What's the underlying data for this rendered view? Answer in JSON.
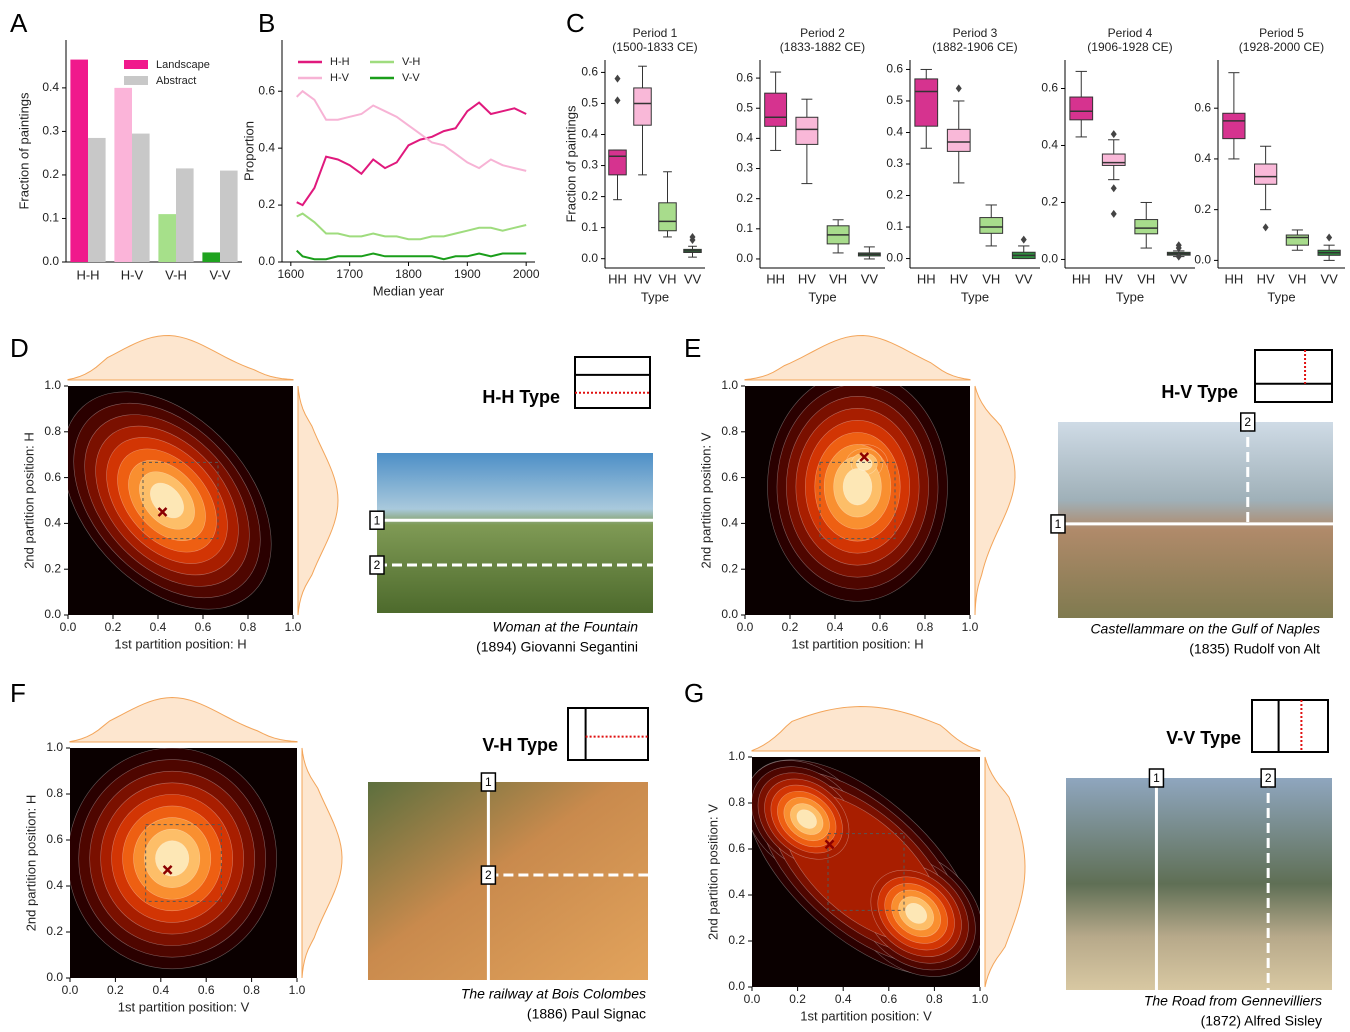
{
  "chart_data": [
    {
      "type": "bar",
      "panel": "A",
      "ylabel": "Fraction of paintings",
      "categories": [
        "H-H",
        "H-V",
        "V-H",
        "V-V"
      ],
      "series": [
        {
          "name": "Landscape",
          "color": "#f0198c",
          "colors": [
            "#f0198c",
            "#fbb4d9",
            "#a6e08a",
            "#1fa31f"
          ],
          "values": [
            0.465,
            0.4,
            0.11,
            0.022
          ]
        },
        {
          "name": "Abstract",
          "color": "#c8c8c8",
          "values": [
            0.285,
            0.295,
            0.215,
            0.21
          ]
        }
      ],
      "ylim": [
        0,
        0.51
      ],
      "yticks": [
        {
          "value": 0,
          "label": "0.0"
        },
        {
          "value": 0.1,
          "label": "0.1"
        },
        {
          "value": 0.2,
          "label": "0.2"
        },
        {
          "value": 0.3,
          "label": "0.3"
        },
        {
          "value": 0.4,
          "label": "0.4"
        }
      ],
      "legend": "upper right"
    },
    {
      "type": "line",
      "panel": "B",
      "xlabel": "Median year",
      "ylabel": "Proportion",
      "x": [
        1610,
        1620,
        1640,
        1660,
        1680,
        1700,
        1720,
        1740,
        1760,
        1780,
        1800,
        1820,
        1840,
        1860,
        1880,
        1900,
        1920,
        1940,
        1960,
        1980,
        2000
      ],
      "series": [
        {
          "name": "H-H",
          "color": "#e0197d",
          "values": [
            0.21,
            0.2,
            0.26,
            0.37,
            0.36,
            0.34,
            0.31,
            0.36,
            0.33,
            0.35,
            0.41,
            0.43,
            0.44,
            0.46,
            0.47,
            0.53,
            0.56,
            0.52,
            0.53,
            0.54,
            0.52
          ]
        },
        {
          "name": "H-V",
          "color": "#f7b3d5",
          "values": [
            0.58,
            0.6,
            0.57,
            0.5,
            0.5,
            0.51,
            0.52,
            0.55,
            0.53,
            0.51,
            0.48,
            0.45,
            0.42,
            0.41,
            0.38,
            0.35,
            0.33,
            0.36,
            0.34,
            0.33,
            0.32
          ]
        },
        {
          "name": "V-H",
          "color": "#9fdc7e",
          "values": [
            0.16,
            0.17,
            0.14,
            0.1,
            0.1,
            0.09,
            0.09,
            0.1,
            0.09,
            0.09,
            0.08,
            0.08,
            0.09,
            0.09,
            0.1,
            0.11,
            0.12,
            0.12,
            0.11,
            0.12,
            0.13
          ]
        },
        {
          "name": "V-V",
          "color": "#1a9e1a",
          "values": [
            0.04,
            0.02,
            0.01,
            0.01,
            0.02,
            0.02,
            0.02,
            0.03,
            0.02,
            0.02,
            0.02,
            0.02,
            0.02,
            0.01,
            0.02,
            0.02,
            0.03,
            0.02,
            0.03,
            0.03,
            0.03
          ]
        }
      ],
      "xlim": [
        1585,
        2015
      ],
      "xticks": [
        1600,
        1700,
        1800,
        1900,
        2000
      ],
      "ylim": [
        0,
        0.78
      ],
      "yticks": [
        {
          "value": 0,
          "label": "0.0"
        },
        {
          "value": 0.2,
          "label": "0.2"
        },
        {
          "value": 0.4,
          "label": "0.4"
        },
        {
          "value": 0.6,
          "label": "0.6"
        }
      ],
      "legend": "upper left"
    },
    {
      "type": "box",
      "panel": "C",
      "title": "Period 1",
      "subtitle": "(1500-1833 CE)",
      "xlabel": "Type",
      "ylabel": "Fraction of paintings",
      "categories": [
        "HH",
        "HV",
        "VH",
        "VV"
      ],
      "colors": [
        "#d6338f",
        "#f9b8d8",
        "#a8dc8c",
        "#2e8b3e"
      ],
      "boxes": [
        {
          "whislo": 0.19,
          "q1": 0.27,
          "med": 0.33,
          "q3": 0.35,
          "whishi": 0.35,
          "fliers": [
            0.51,
            0.58
          ]
        },
        {
          "whislo": 0.27,
          "q1": 0.43,
          "med": 0.5,
          "q3": 0.55,
          "whishi": 0.62,
          "fliers": []
        },
        {
          "whislo": 0.07,
          "q1": 0.09,
          "med": 0.12,
          "q3": 0.18,
          "whishi": 0.28,
          "fliers": []
        },
        {
          "whislo": 0.005,
          "q1": 0.02,
          "med": 0.025,
          "q3": 0.03,
          "whishi": 0.04,
          "fliers": [
            0.06,
            0.07
          ]
        }
      ],
      "ylim": [
        -0.03,
        0.64
      ],
      "yticks": [
        {
          "value": 0,
          "label": "0.0"
        },
        {
          "value": 0.1,
          "label": "0.1"
        },
        {
          "value": 0.2,
          "label": "0.2"
        },
        {
          "value": 0.3,
          "label": "0.3"
        },
        {
          "value": 0.4,
          "label": "0.4"
        },
        {
          "value": 0.5,
          "label": "0.5"
        },
        {
          "value": 0.6,
          "label": "0.6"
        }
      ]
    },
    {
      "type": "box",
      "title": "Period 2",
      "subtitle": "(1833-1882 CE)",
      "xlabel": "Type",
      "categories": [
        "HH",
        "HV",
        "VH",
        "VV"
      ],
      "colors": [
        "#d6338f",
        "#f9b8d8",
        "#a8dc8c",
        "#2e8b3e"
      ],
      "boxes": [
        {
          "whislo": 0.36,
          "q1": 0.44,
          "med": 0.47,
          "q3": 0.55,
          "whishi": 0.62,
          "fliers": []
        },
        {
          "whislo": 0.25,
          "q1": 0.38,
          "med": 0.43,
          "q3": 0.47,
          "whishi": 0.53,
          "fliers": []
        },
        {
          "whislo": 0.02,
          "q1": 0.05,
          "med": 0.08,
          "q3": 0.11,
          "whishi": 0.13,
          "fliers": []
        },
        {
          "whislo": 0,
          "q1": 0.01,
          "med": 0.015,
          "q3": 0.02,
          "whishi": 0.04,
          "fliers": []
        }
      ],
      "ylim": [
        -0.03,
        0.66
      ],
      "yticks": [
        {
          "value": 0,
          "label": "0.0"
        },
        {
          "value": 0.1,
          "label": "0.1"
        },
        {
          "value": 0.2,
          "label": "0.2"
        },
        {
          "value": 0.3,
          "label": "0.3"
        },
        {
          "value": 0.4,
          "label": "0.4"
        },
        {
          "value": 0.5,
          "label": "0.5"
        },
        {
          "value": 0.6,
          "label": "0.6"
        }
      ]
    },
    {
      "type": "box",
      "title": "Period 3",
      "subtitle": "(1882-1906 CE)",
      "xlabel": "Type",
      "categories": [
        "HH",
        "HV",
        "VH",
        "VV"
      ],
      "colors": [
        "#d6338f",
        "#f9b8d8",
        "#a8dc8c",
        "#2e8b3e"
      ],
      "boxes": [
        {
          "whislo": 0.35,
          "q1": 0.42,
          "med": 0.53,
          "q3": 0.57,
          "whishi": 0.6,
          "fliers": []
        },
        {
          "whislo": 0.24,
          "q1": 0.34,
          "med": 0.37,
          "q3": 0.41,
          "whishi": 0.5,
          "fliers": [
            0.54
          ]
        },
        {
          "whislo": 0.04,
          "q1": 0.08,
          "med": 0.1,
          "q3": 0.13,
          "whishi": 0.17,
          "fliers": []
        },
        {
          "whislo": 0,
          "q1": 0,
          "med": 0.01,
          "q3": 0.02,
          "whishi": 0.04,
          "fliers": [
            0.06
          ]
        }
      ],
      "ylim": [
        -0.03,
        0.63
      ],
      "yticks": [
        {
          "value": 0,
          "label": "0.0"
        },
        {
          "value": 0.1,
          "label": "0.1"
        },
        {
          "value": 0.2,
          "label": "0.2"
        },
        {
          "value": 0.3,
          "label": "0.3"
        },
        {
          "value": 0.4,
          "label": "0.4"
        },
        {
          "value": 0.5,
          "label": "0.5"
        },
        {
          "value": 0.6,
          "label": "0.6"
        }
      ]
    },
    {
      "type": "box",
      "title": "Period 4",
      "subtitle": "(1906-1928 CE)",
      "xlabel": "Type",
      "categories": [
        "HH",
        "HV",
        "VH",
        "VV"
      ],
      "colors": [
        "#d6338f",
        "#f9b8d8",
        "#a8dc8c",
        "#2e8b3e"
      ],
      "boxes": [
        {
          "whislo": 0.43,
          "q1": 0.49,
          "med": 0.52,
          "q3": 0.57,
          "whishi": 0.66,
          "fliers": []
        },
        {
          "whislo": 0.28,
          "q1": 0.33,
          "med": 0.34,
          "q3": 0.37,
          "whishi": 0.42,
          "fliers": [
            0.44,
            0.25,
            0.16
          ]
        },
        {
          "whislo": 0.04,
          "q1": 0.09,
          "med": 0.11,
          "q3": 0.14,
          "whishi": 0.2,
          "fliers": []
        },
        {
          "whislo": 0.01,
          "q1": 0.015,
          "med": 0.02,
          "q3": 0.025,
          "whishi": 0.03,
          "fliers": [
            0.05,
            0.04,
            0.01
          ]
        }
      ],
      "ylim": [
        -0.03,
        0.7
      ],
      "yticks": [
        {
          "value": 0,
          "label": "0.0"
        },
        {
          "value": 0.2,
          "label": "0.2"
        },
        {
          "value": 0.4,
          "label": "0.4"
        },
        {
          "value": 0.6,
          "label": "0.6"
        }
      ]
    },
    {
      "type": "box",
      "title": "Period 5",
      "subtitle": "(1928-2000 CE)",
      "xlabel": "Type",
      "categories": [
        "HH",
        "HV",
        "VH",
        "VV"
      ],
      "colors": [
        "#d6338f",
        "#f9b8d8",
        "#a8dc8c",
        "#2e8b3e"
      ],
      "boxes": [
        {
          "whislo": 0.4,
          "q1": 0.48,
          "med": 0.55,
          "q3": 0.58,
          "whishi": 0.74,
          "fliers": []
        },
        {
          "whislo": 0.2,
          "q1": 0.3,
          "med": 0.33,
          "q3": 0.38,
          "whishi": 0.45,
          "fliers": [
            0.13
          ]
        },
        {
          "whislo": 0.04,
          "q1": 0.06,
          "med": 0.09,
          "q3": 0.1,
          "whishi": 0.12,
          "fliers": []
        },
        {
          "whislo": 0,
          "q1": 0.02,
          "med": 0.03,
          "q3": 0.04,
          "whishi": 0.06,
          "fliers": [
            0.09
          ]
        }
      ],
      "ylim": [
        -0.03,
        0.79
      ],
      "yticks": [
        {
          "value": 0,
          "label": "0.0"
        },
        {
          "value": 0.2,
          "label": "0.2"
        },
        {
          "value": 0.4,
          "label": "0.4"
        },
        {
          "value": 0.6,
          "label": "0.6"
        }
      ]
    },
    {
      "type": "kde",
      "panel": "D",
      "xlabel": "1st partition position: H",
      "ylabel": "2nd partition position: H",
      "mean": {
        "x": 0.42,
        "y": 0.45
      },
      "xlim": [
        0,
        1
      ],
      "ylim": [
        0,
        1
      ],
      "xticks": [
        {
          "value": 0,
          "label": "0.0"
        },
        {
          "value": 0.2,
          "label": "0.2"
        },
        {
          "value": 0.4,
          "label": "0.4"
        },
        {
          "value": 0.6,
          "label": "0.6"
        },
        {
          "value": 0.8,
          "label": "0.8"
        },
        {
          "value": 1,
          "label": "1.0"
        }
      ],
      "yticks": [
        {
          "value": 0,
          "label": "0.0"
        },
        {
          "value": 0.2,
          "label": "0.2"
        },
        {
          "value": 0.4,
          "label": "0.4"
        },
        {
          "value": 0.6,
          "label": "0.6"
        },
        {
          "value": 0.8,
          "label": "0.8"
        },
        {
          "value": 1,
          "label": "1.0"
        }
      ]
    },
    {
      "type": "kde",
      "panel": "E",
      "xlabel": "1st partition position: H",
      "ylabel": "2nd partition position: V",
      "mean": {
        "x": 0.53,
        "y": 0.69
      },
      "xlim": [
        0,
        1
      ],
      "ylim": [
        0,
        1
      ],
      "xticks": [
        {
          "value": 0,
          "label": "0.0"
        },
        {
          "value": 0.2,
          "label": "0.2"
        },
        {
          "value": 0.4,
          "label": "0.4"
        },
        {
          "value": 0.6,
          "label": "0.6"
        },
        {
          "value": 0.8,
          "label": "0.8"
        },
        {
          "value": 1,
          "label": "1.0"
        }
      ],
      "yticks": [
        {
          "value": 0,
          "label": "0.0"
        },
        {
          "value": 0.2,
          "label": "0.2"
        },
        {
          "value": 0.4,
          "label": "0.4"
        },
        {
          "value": 0.6,
          "label": "0.6"
        },
        {
          "value": 0.8,
          "label": "0.8"
        },
        {
          "value": 1,
          "label": "1.0"
        }
      ]
    },
    {
      "type": "kde",
      "panel": "F",
      "xlabel": "1st partition position: V",
      "ylabel": "2nd partition position: H",
      "mean": {
        "x": 0.43,
        "y": 0.47
      },
      "xlim": [
        0,
        1
      ],
      "ylim": [
        0,
        1
      ],
      "xticks": [
        {
          "value": 0,
          "label": "0.0"
        },
        {
          "value": 0.2,
          "label": "0.2"
        },
        {
          "value": 0.4,
          "label": "0.4"
        },
        {
          "value": 0.6,
          "label": "0.6"
        },
        {
          "value": 0.8,
          "label": "0.8"
        },
        {
          "value": 1,
          "label": "1.0"
        }
      ],
      "yticks": [
        {
          "value": 0,
          "label": "0.0"
        },
        {
          "value": 0.2,
          "label": "0.2"
        },
        {
          "value": 0.4,
          "label": "0.4"
        },
        {
          "value": 0.6,
          "label": "0.6"
        },
        {
          "value": 0.8,
          "label": "0.8"
        },
        {
          "value": 1,
          "label": "1.0"
        }
      ]
    },
    {
      "type": "kde",
      "panel": "G",
      "xlabel": "1st partition position: V",
      "ylabel": "2nd partition position: V",
      "mean": {
        "x": 0.34,
        "y": 0.62
      },
      "xlim": [
        0,
        1
      ],
      "ylim": [
        0,
        1
      ],
      "xticks": [
        {
          "value": 0,
          "label": "0.0"
        },
        {
          "value": 0.2,
          "label": "0.2"
        },
        {
          "value": 0.4,
          "label": "0.4"
        },
        {
          "value": 0.6,
          "label": "0.6"
        },
        {
          "value": 0.8,
          "label": "0.8"
        },
        {
          "value": 1,
          "label": "1.0"
        }
      ],
      "yticks": [
        {
          "value": 0,
          "label": "0.0"
        },
        {
          "value": 0.2,
          "label": "0.2"
        },
        {
          "value": 0.4,
          "label": "0.4"
        },
        {
          "value": 0.6,
          "label": "0.6"
        },
        {
          "value": 0.8,
          "label": "0.8"
        },
        {
          "value": 1,
          "label": "1.0"
        }
      ]
    }
  ],
  "paintings": [
    {
      "type_label": "H-H Type",
      "title": "Woman at the Fountain",
      "caption": "(1894) Giovanni Segantini",
      "markers": [
        "1",
        "2"
      ]
    },
    {
      "type_label": "H-V Type",
      "title": "Castellammare on the Gulf of Naples",
      "caption": "(1835) Rudolf von Alt",
      "markers": [
        "1",
        "2"
      ]
    },
    {
      "type_label": "V-H Type",
      "title": "The railway at Bois Colombes",
      "caption": "(1886) Paul Signac",
      "markers": [
        "1",
        "2"
      ]
    },
    {
      "type_label": "V-V Type",
      "title": "The Road from Gennevilliers",
      "caption": "(1872) Alfred Sisley",
      "markers": [
        "1",
        "2"
      ]
    }
  ]
}
